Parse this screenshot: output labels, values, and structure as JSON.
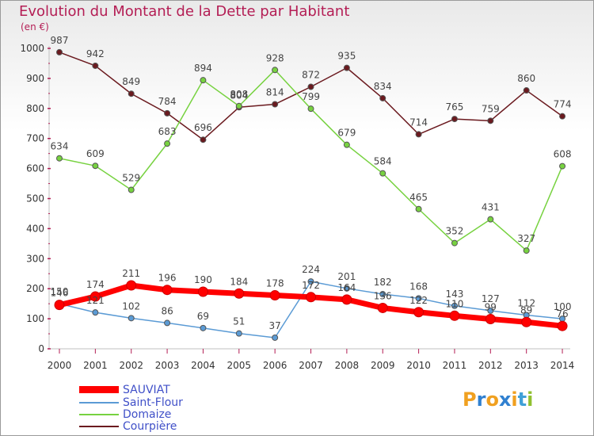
{
  "title": "Evolution du Montant de la Dette par Habitant",
  "unit": "(en €)",
  "logo": {
    "text": "Proxiti",
    "letters": [
      "P",
      "r",
      "o",
      "x",
      "i",
      "t",
      "i"
    ],
    "colors": [
      "#f0a020",
      "#3080d0",
      "#f0a020",
      "#3080d0",
      "#f0a020",
      "#40a0d8",
      "#90c030"
    ]
  },
  "chart_data": {
    "type": "line",
    "title": "Evolution du Montant de la Dette par Habitant",
    "ylabel": "(en €)",
    "ylim": [
      0,
      1000
    ],
    "yticks": [
      0,
      100,
      200,
      300,
      400,
      500,
      600,
      700,
      800,
      900,
      1000
    ],
    "grid": false,
    "legend_position": "bottom-left",
    "x": [
      "2000",
      "2001",
      "2002",
      "2003",
      "2004",
      "2005",
      "2006",
      "2007",
      "2008",
      "2009",
      "2010",
      "2011",
      "2012",
      "2013",
      "2014"
    ],
    "series": [
      {
        "name": "SAUVIAT",
        "color": "#ff0000",
        "values": [
          146,
          174,
          211,
          196,
          190,
          184,
          178,
          172,
          164,
          136,
          122,
          110,
          99,
          89,
          76
        ]
      },
      {
        "name": "Saint-Flour",
        "color": "#5b9bd5",
        "values": [
          150,
          121,
          102,
          86,
          69,
          51,
          37,
          224,
          201,
          182,
          168,
          143,
          127,
          112,
          100
        ]
      },
      {
        "name": "Domaize",
        "color": "#77d240",
        "values": [
          634,
          609,
          529,
          683,
          894,
          808,
          928,
          799,
          679,
          584,
          465,
          352,
          431,
          327,
          608
        ]
      },
      {
        "name": "Courpière",
        "color": "#6b1a1f",
        "values": [
          987,
          942,
          849,
          784,
          696,
          804,
          814,
          872,
          935,
          834,
          714,
          765,
          759,
          860,
          774
        ]
      }
    ]
  }
}
